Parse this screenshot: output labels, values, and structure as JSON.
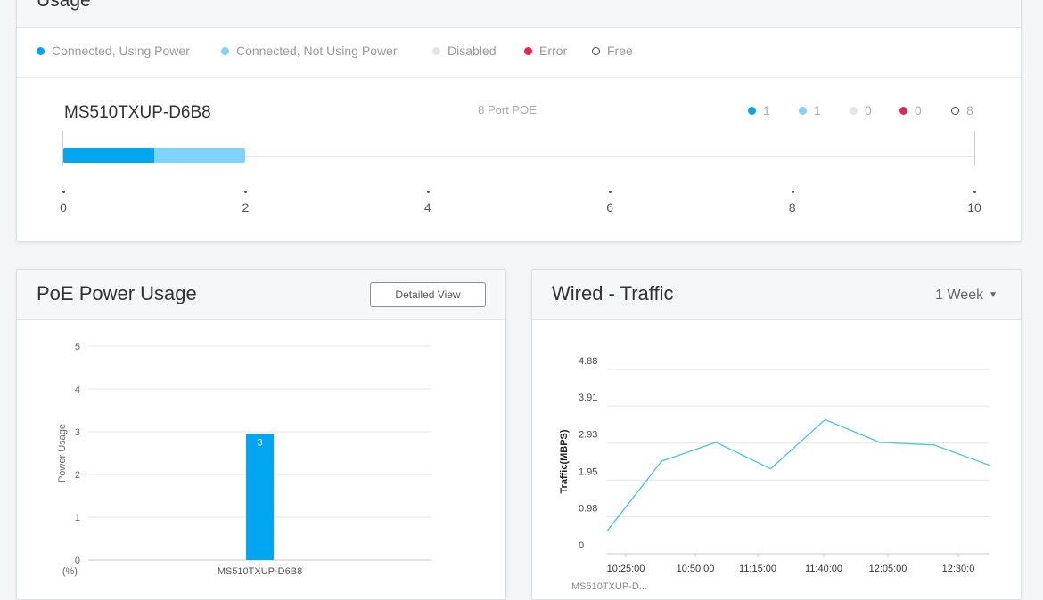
{
  "usage": {
    "title": "Usage",
    "legend": [
      {
        "label": "Connected, Using Power",
        "color": "#00a6f0"
      },
      {
        "label": "Connected, Not Using Power",
        "color": "#80d4fb"
      },
      {
        "label": "Disabled",
        "color": "#e3e3ea"
      },
      {
        "label": "Error",
        "color": "#e8264a"
      },
      {
        "label": "Free",
        "color": "#ffffff"
      }
    ],
    "device": {
      "name": "MS510TXUP-D6B8",
      "port_type": "8 Port POE",
      "counts": [
        "1",
        "1",
        "0",
        "0",
        "8"
      ],
      "using_power_ports": 1,
      "not_using_power_ports": 1,
      "axis_ticks": [
        "0",
        "2",
        "4",
        "6",
        "8",
        "10"
      ],
      "axis_max": 10
    }
  },
  "poe": {
    "title": "PoE Power Usage",
    "detail_button": "Detailed View"
  },
  "traffic": {
    "title": "Wired - Traffic",
    "range": "1 Week",
    "series_label_partial": "MS510TXUP-D..."
  },
  "chart_data": [
    {
      "type": "bar",
      "title": "PoE Power Usage",
      "ylabel": "Power Usage",
      "yunit": "(%)",
      "categories": [
        "MS510TXUP-D6B8"
      ],
      "values": [
        2.95
      ],
      "data_labels": [
        "3"
      ],
      "yticks": [
        "0",
        "1",
        "2",
        "3",
        "4",
        "5"
      ],
      "ylim": [
        0,
        5
      ],
      "grid": true,
      "color": "#00a6f0"
    },
    {
      "type": "line",
      "title": "Wired - Traffic",
      "ylabel": "Traffic(MBPS)",
      "yticks": [
        "0",
        "0.98",
        "1.95",
        "2.93",
        "3.91",
        "4.88"
      ],
      "ylim": [
        0,
        4.88
      ],
      "xticks": [
        "10:25:00",
        "10:50:00",
        "11:15:00",
        "11:40:00",
        "12:05:00",
        "12:30:0"
      ],
      "x": [
        0,
        1,
        2,
        3,
        4,
        5,
        6,
        7
      ],
      "values": [
        0.6,
        2.45,
        2.95,
        2.25,
        3.55,
        2.95,
        2.88,
        2.35
      ],
      "grid": true,
      "color": "#45c4f2"
    }
  ]
}
